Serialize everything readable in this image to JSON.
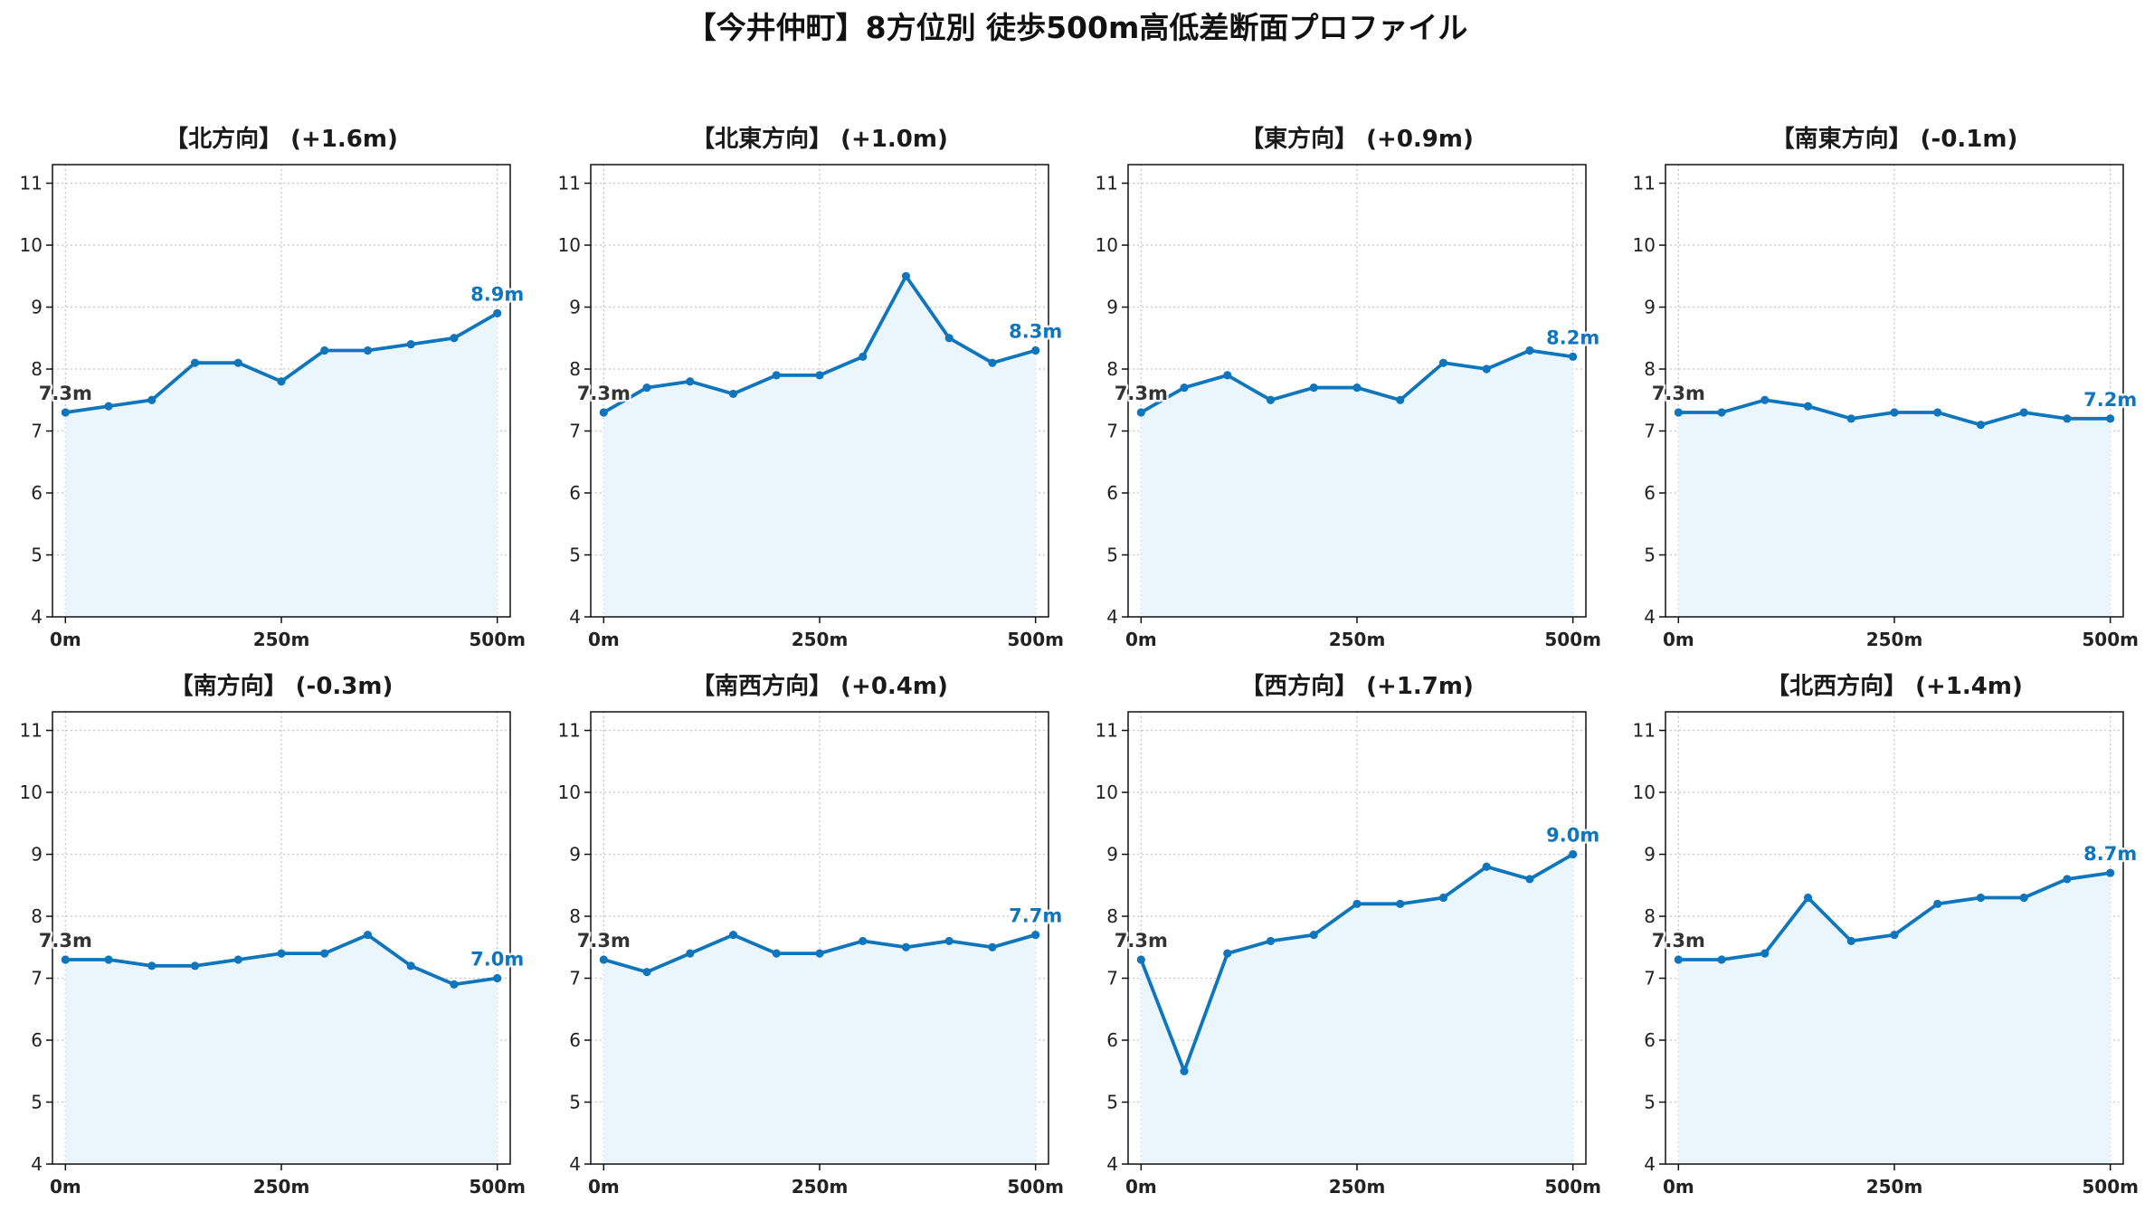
{
  "title": "【今井仲町】8方位別 徒歩500m高低差断面プロファイル",
  "colors": {
    "line": "#0f75bc",
    "fill": "#eaf6fc",
    "start_label": "#333333",
    "end_label": "#0f75bc",
    "grid": "#c8c8c8"
  },
  "chart_data": [
    {
      "type": "area",
      "title": "【北方向】 (+1.6m)",
      "x": [
        0,
        50,
        100,
        150,
        200,
        250,
        300,
        350,
        400,
        450,
        500
      ],
      "values": [
        7.3,
        7.4,
        7.5,
        8.1,
        8.1,
        7.8,
        8.3,
        8.3,
        8.4,
        8.5,
        8.9
      ],
      "xlim": [
        -15,
        515
      ],
      "ylim": [
        4,
        11.3
      ],
      "xticks": [
        0,
        250,
        500
      ],
      "xtick_labels": [
        "0m",
        "250m",
        "500m"
      ],
      "yticks": [
        4,
        5,
        6,
        7,
        8,
        9,
        10,
        11
      ],
      "start_label": "7.3m",
      "end_label": "8.9m",
      "grid": true
    },
    {
      "type": "area",
      "title": "【北東方向】 (+1.0m)",
      "x": [
        0,
        50,
        100,
        150,
        200,
        250,
        300,
        350,
        400,
        450,
        500
      ],
      "values": [
        7.3,
        7.7,
        7.8,
        7.6,
        7.9,
        7.9,
        8.2,
        9.5,
        8.5,
        8.1,
        8.3
      ],
      "xlim": [
        -15,
        515
      ],
      "ylim": [
        4,
        11.3
      ],
      "xticks": [
        0,
        250,
        500
      ],
      "xtick_labels": [
        "0m",
        "250m",
        "500m"
      ],
      "yticks": [
        4,
        5,
        6,
        7,
        8,
        9,
        10,
        11
      ],
      "start_label": "7.3m",
      "end_label": "8.3m",
      "grid": true
    },
    {
      "type": "area",
      "title": "【東方向】 (+0.9m)",
      "x": [
        0,
        50,
        100,
        150,
        200,
        250,
        300,
        350,
        400,
        450,
        500
      ],
      "values": [
        7.3,
        7.7,
        7.9,
        7.5,
        7.7,
        7.7,
        7.5,
        8.1,
        8.0,
        8.3,
        8.2
      ],
      "xlim": [
        -15,
        515
      ],
      "ylim": [
        4,
        11.3
      ],
      "xticks": [
        0,
        250,
        500
      ],
      "xtick_labels": [
        "0m",
        "250m",
        "500m"
      ],
      "yticks": [
        4,
        5,
        6,
        7,
        8,
        9,
        10,
        11
      ],
      "start_label": "7.3m",
      "end_label": "8.2m",
      "grid": true
    },
    {
      "type": "area",
      "title": "【南東方向】 (-0.1m)",
      "x": [
        0,
        50,
        100,
        150,
        200,
        250,
        300,
        350,
        400,
        450,
        500
      ],
      "values": [
        7.3,
        7.3,
        7.5,
        7.4,
        7.2,
        7.3,
        7.3,
        7.1,
        7.3,
        7.2,
        7.2
      ],
      "xlim": [
        -15,
        515
      ],
      "ylim": [
        4,
        11.3
      ],
      "xticks": [
        0,
        250,
        500
      ],
      "xtick_labels": [
        "0m",
        "250m",
        "500m"
      ],
      "yticks": [
        4,
        5,
        6,
        7,
        8,
        9,
        10,
        11
      ],
      "start_label": "7.3m",
      "end_label": "7.2m",
      "grid": true
    },
    {
      "type": "area",
      "title": "【南方向】 (-0.3m)",
      "x": [
        0,
        50,
        100,
        150,
        200,
        250,
        300,
        350,
        400,
        450,
        500
      ],
      "values": [
        7.3,
        7.3,
        7.2,
        7.2,
        7.3,
        7.4,
        7.4,
        7.7,
        7.2,
        6.9,
        7.0
      ],
      "xlim": [
        -15,
        515
      ],
      "ylim": [
        4,
        11.3
      ],
      "xticks": [
        0,
        250,
        500
      ],
      "xtick_labels": [
        "0m",
        "250m",
        "500m"
      ],
      "yticks": [
        4,
        5,
        6,
        7,
        8,
        9,
        10,
        11
      ],
      "start_label": "7.3m",
      "end_label": "7.0m",
      "grid": true
    },
    {
      "type": "area",
      "title": "【南西方向】 (+0.4m)",
      "x": [
        0,
        50,
        100,
        150,
        200,
        250,
        300,
        350,
        400,
        450,
        500
      ],
      "values": [
        7.3,
        7.1,
        7.4,
        7.7,
        7.4,
        7.4,
        7.6,
        7.5,
        7.6,
        7.5,
        7.7
      ],
      "xlim": [
        -15,
        515
      ],
      "ylim": [
        4,
        11.3
      ],
      "xticks": [
        0,
        250,
        500
      ],
      "xtick_labels": [
        "0m",
        "250m",
        "500m"
      ],
      "yticks": [
        4,
        5,
        6,
        7,
        8,
        9,
        10,
        11
      ],
      "start_label": "7.3m",
      "end_label": "7.7m",
      "grid": true
    },
    {
      "type": "area",
      "title": "【西方向】 (+1.7m)",
      "x": [
        0,
        50,
        100,
        150,
        200,
        250,
        300,
        350,
        400,
        450,
        500
      ],
      "values": [
        7.3,
        5.5,
        7.4,
        7.6,
        7.7,
        8.2,
        8.2,
        8.3,
        8.8,
        8.6,
        9.0
      ],
      "xlim": [
        -15,
        515
      ],
      "ylim": [
        4,
        11.3
      ],
      "xticks": [
        0,
        250,
        500
      ],
      "xtick_labels": [
        "0m",
        "250m",
        "500m"
      ],
      "yticks": [
        4,
        5,
        6,
        7,
        8,
        9,
        10,
        11
      ],
      "start_label": "7.3m",
      "end_label": "9.0m",
      "grid": true
    },
    {
      "type": "area",
      "title": "【北西方向】 (+1.4m)",
      "x": [
        0,
        50,
        100,
        150,
        200,
        250,
        300,
        350,
        400,
        450,
        500
      ],
      "values": [
        7.3,
        7.3,
        7.4,
        8.3,
        7.6,
        7.7,
        8.2,
        8.3,
        8.3,
        8.6,
        8.7
      ],
      "xlim": [
        -15,
        515
      ],
      "ylim": [
        4,
        11.3
      ],
      "xticks": [
        0,
        250,
        500
      ],
      "xtick_labels": [
        "0m",
        "250m",
        "500m"
      ],
      "yticks": [
        4,
        5,
        6,
        7,
        8,
        9,
        10,
        11
      ],
      "start_label": "7.3m",
      "end_label": "8.7m",
      "grid": true
    }
  ]
}
